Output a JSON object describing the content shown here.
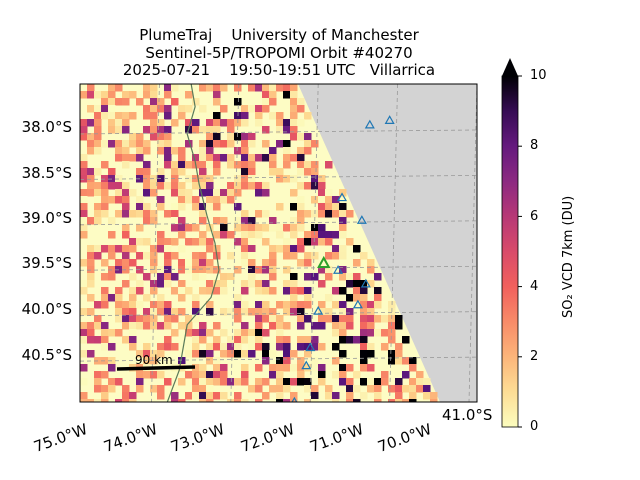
{
  "title_lines": [
    "PlumeTraj    University of Manchester",
    "Sentinel-5P/TROPOMI Orbit #40270",
    "2025-07-21    19:50-19:51 UTC   Villarrica"
  ],
  "map": {
    "lon_range": [
      -75.0,
      -70.0
    ],
    "lat_range": [
      -40.95,
      -37.45
    ],
    "no_data_color": "#d3d3d3",
    "coastline_color": "#5a7a5a",
    "x_ticks": [
      "75.0°W",
      "74.0°W",
      "73.0°W",
      "72.0°W",
      "71.0°W",
      "70.0°W",
      "41.0°S"
    ],
    "y_ticks": [
      "38.0°S",
      "38.5°S",
      "39.0°S",
      "39.5°S",
      "40.0°S",
      "40.5°S"
    ],
    "scale_bar_label": "90 km",
    "target_volcano": {
      "name": "Villarrica",
      "lon": -71.93,
      "lat": -39.42,
      "color": "#2ca02c"
    },
    "volcano_markers_color": "#1f77b4",
    "volcanoes": [
      {
        "lon": -71.35,
        "lat": -37.9
      },
      {
        "lon": -71.1,
        "lat": -37.85
      },
      {
        "lon": -71.7,
        "lat": -38.7
      },
      {
        "lon": -71.45,
        "lat": -38.95
      },
      {
        "lon": -71.75,
        "lat": -39.5
      },
      {
        "lon": -71.4,
        "lat": -39.65
      },
      {
        "lon": -71.5,
        "lat": -39.88
      },
      {
        "lon": -72.0,
        "lat": -39.95
      },
      {
        "lon": -72.1,
        "lat": -40.35
      },
      {
        "lon": -72.15,
        "lat": -40.55
      },
      {
        "lon": -72.3,
        "lat": -40.95
      }
    ]
  },
  "colorbar": {
    "label": "SO₂ VCD 7km (DU)",
    "ticks": [
      "0",
      "2",
      "4",
      "6",
      "8",
      "10"
    ],
    "min": 0,
    "max": 10,
    "extend": "max",
    "colormap": "magma_r"
  }
}
